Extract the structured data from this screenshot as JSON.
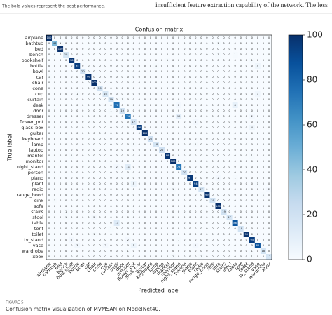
{
  "header_note": "The bold values represent the best performance.",
  "body_text": "insufficient feature extraction capability of the network. The less",
  "caption": {
    "label": "FIGURE 5",
    "text": "Confusion matrix visualization of MVMSAN on ModelNet40."
  },
  "chart_data": {
    "type": "heatmap",
    "title": "Confusion matrix",
    "x_label": "Predicted label",
    "y_label": "True label",
    "categories": [
      "airplane",
      "bathtub",
      "bed",
      "bench",
      "bookshelf",
      "bottle",
      "bowl",
      "car",
      "chair",
      "cone",
      "cup",
      "curtain",
      "desk",
      "door",
      "dresser",
      "flower_pot",
      "glass_box",
      "guitar",
      "keyboard",
      "lamp",
      "laptop",
      "mantel",
      "monitor",
      "night_stand",
      "person",
      "piano",
      "plant",
      "radio",
      "range_hood",
      "sink",
      "sofa",
      "stairs",
      "stool",
      "table",
      "tent",
      "toilet",
      "tv_stand",
      "vase",
      "wardrobe",
      "xbox"
    ],
    "colormap": [
      "#f7fbff",
      "#deebf7",
      "#c6dbef",
      "#9ecae1",
      "#6baed6",
      "#4292c6",
      "#2171b5",
      "#08519c",
      "#08306b"
    ],
    "clim": [
      0,
      100
    ],
    "cticks": [
      0,
      20,
      40,
      60,
      80,
      100
    ],
    "matrix": [
      [
        100,
        0,
        0,
        0,
        0,
        0,
        0,
        0,
        0,
        0,
        0,
        0,
        0,
        0,
        0,
        0,
        0,
        0,
        0,
        0,
        0,
        0,
        0,
        0,
        0,
        0,
        0,
        0,
        0,
        0,
        0,
        0,
        0,
        0,
        0,
        0,
        0,
        0,
        0,
        0
      ],
      [
        0,
        46,
        1,
        0,
        0,
        0,
        0,
        0,
        0,
        0,
        0,
        0,
        0,
        0,
        0,
        0,
        0,
        0,
        0,
        0,
        0,
        0,
        0,
        0,
        0,
        0,
        0,
        0,
        0,
        0,
        1,
        0,
        0,
        0,
        0,
        0,
        0,
        0,
        0,
        0
      ],
      [
        0,
        0,
        100,
        0,
        0,
        0,
        0,
        0,
        0,
        0,
        0,
        0,
        0,
        0,
        0,
        0,
        0,
        0,
        0,
        0,
        0,
        0,
        0,
        0,
        0,
        0,
        0,
        0,
        0,
        0,
        0,
        0,
        0,
        0,
        0,
        0,
        0,
        0,
        0,
        0
      ],
      [
        0,
        0,
        0,
        18,
        0,
        0,
        0,
        0,
        0,
        0,
        0,
        0,
        0,
        0,
        0,
        0,
        0,
        0,
        0,
        0,
        0,
        0,
        0,
        0,
        0,
        0,
        0,
        0,
        0,
        0,
        1,
        0,
        0,
        1,
        0,
        0,
        0,
        0,
        0,
        0
      ],
      [
        0,
        0,
        0,
        0,
        98,
        0,
        0,
        0,
        0,
        0,
        0,
        0,
        0,
        0,
        0,
        0,
        0,
        0,
        0,
        0,
        0,
        1,
        0,
        0,
        0,
        0,
        0,
        0,
        0,
        0,
        0,
        0,
        0,
        0,
        0,
        0,
        1,
        0,
        0,
        0
      ],
      [
        0,
        0,
        0,
        0,
        0,
        95,
        0,
        0,
        0,
        0,
        0,
        0,
        0,
        0,
        0,
        0,
        0,
        0,
        0,
        1,
        0,
        0,
        0,
        0,
        0,
        0,
        0,
        0,
        0,
        0,
        0,
        0,
        0,
        0,
        0,
        0,
        0,
        4,
        0,
        0
      ],
      [
        0,
        0,
        0,
        0,
        0,
        0,
        20,
        0,
        0,
        0,
        0,
        0,
        0,
        0,
        0,
        0,
        0,
        0,
        0,
        0,
        0,
        0,
        0,
        0,
        0,
        0,
        0,
        0,
        0,
        0,
        0,
        0,
        0,
        0,
        0,
        0,
        0,
        0,
        0,
        0
      ],
      [
        1,
        0,
        0,
        0,
        0,
        0,
        0,
        99,
        0,
        0,
        0,
        0,
        0,
        0,
        0,
        0,
        0,
        0,
        0,
        0,
        0,
        0,
        0,
        0,
        0,
        0,
        0,
        0,
        0,
        0,
        0,
        0,
        0,
        0,
        0,
        0,
        0,
        0,
        0,
        0
      ],
      [
        0,
        0,
        0,
        0,
        0,
        0,
        0,
        0,
        100,
        0,
        0,
        0,
        0,
        0,
        0,
        0,
        0,
        0,
        0,
        0,
        0,
        0,
        0,
        0,
        0,
        0,
        0,
        0,
        0,
        0,
        0,
        0,
        0,
        0,
        0,
        0,
        0,
        0,
        0,
        0
      ],
      [
        0,
        0,
        0,
        0,
        0,
        0,
        0,
        0,
        0,
        20,
        0,
        0,
        0,
        0,
        0,
        0,
        0,
        0,
        0,
        0,
        0,
        0,
        0,
        0,
        0,
        0,
        0,
        0,
        0,
        0,
        0,
        0,
        0,
        0,
        0,
        0,
        0,
        0,
        0,
        0
      ],
      [
        0,
        0,
        0,
        0,
        0,
        1,
        0,
        0,
        0,
        0,
        16,
        0,
        0,
        0,
        0,
        0,
        0,
        0,
        0,
        0,
        0,
        0,
        0,
        0,
        0,
        0,
        0,
        0,
        0,
        0,
        0,
        0,
        0,
        0,
        0,
        0,
        0,
        3,
        0,
        0
      ],
      [
        0,
        0,
        0,
        0,
        0,
        0,
        0,
        0,
        0,
        0,
        0,
        19,
        0,
        1,
        0,
        0,
        0,
        0,
        0,
        0,
        0,
        0,
        0,
        0,
        0,
        0,
        0,
        0,
        0,
        0,
        0,
        0,
        0,
        0,
        0,
        0,
        0,
        0,
        0,
        0
      ],
      [
        0,
        0,
        0,
        0,
        0,
        0,
        0,
        0,
        0,
        0,
        0,
        0,
        76,
        0,
        0,
        0,
        0,
        0,
        0,
        0,
        0,
        0,
        0,
        2,
        0,
        0,
        0,
        0,
        0,
        0,
        0,
        0,
        0,
        8,
        0,
        0,
        0,
        0,
        0,
        0
      ],
      [
        0,
        0,
        0,
        0,
        0,
        0,
        0,
        0,
        0,
        0,
        0,
        1,
        0,
        19,
        0,
        0,
        0,
        0,
        0,
        0,
        0,
        0,
        0,
        0,
        0,
        0,
        0,
        0,
        0,
        0,
        0,
        0,
        0,
        0,
        0,
        0,
        0,
        0,
        0,
        0
      ],
      [
        0,
        0,
        0,
        0,
        0,
        0,
        0,
        0,
        0,
        0,
        0,
        0,
        0,
        0,
        74,
        0,
        0,
        0,
        0,
        0,
        0,
        0,
        0,
        10,
        0,
        0,
        0,
        0,
        0,
        0,
        0,
        0,
        0,
        0,
        0,
        0,
        2,
        0,
        0,
        0
      ],
      [
        0,
        0,
        0,
        0,
        0,
        0,
        0,
        0,
        0,
        0,
        0,
        0,
        0,
        0,
        0,
        17,
        0,
        0,
        0,
        0,
        0,
        0,
        0,
        0,
        0,
        0,
        2,
        0,
        0,
        0,
        0,
        0,
        0,
        0,
        0,
        0,
        0,
        1,
        0,
        0
      ],
      [
        0,
        0,
        0,
        0,
        0,
        0,
        0,
        0,
        0,
        0,
        0,
        0,
        0,
        0,
        0,
        0,
        96,
        0,
        0,
        0,
        0,
        0,
        0,
        0,
        0,
        0,
        0,
        0,
        0,
        0,
        0,
        0,
        0,
        0,
        0,
        0,
        4,
        0,
        0,
        0
      ],
      [
        0,
        0,
        0,
        0,
        0,
        0,
        0,
        0,
        0,
        0,
        0,
        0,
        0,
        0,
        0,
        0,
        0,
        100,
        0,
        0,
        0,
        0,
        0,
        0,
        0,
        0,
        0,
        0,
        0,
        0,
        0,
        0,
        0,
        0,
        0,
        0,
        0,
        0,
        0,
        0
      ],
      [
        0,
        0,
        0,
        0,
        0,
        0,
        0,
        0,
        0,
        0,
        0,
        0,
        0,
        0,
        0,
        0,
        0,
        0,
        20,
        0,
        0,
        0,
        0,
        0,
        0,
        0,
        0,
        0,
        0,
        0,
        0,
        0,
        0,
        0,
        0,
        0,
        0,
        0,
        0,
        0
      ],
      [
        0,
        0,
        0,
        0,
        0,
        0,
        0,
        0,
        0,
        0,
        0,
        0,
        0,
        0,
        0,
        1,
        0,
        0,
        0,
        18,
        0,
        0,
        0,
        0,
        0,
        0,
        1,
        0,
        0,
        0,
        0,
        0,
        0,
        0,
        0,
        0,
        0,
        0,
        0,
        0
      ],
      [
        0,
        0,
        0,
        0,
        0,
        0,
        0,
        0,
        0,
        0,
        0,
        0,
        0,
        0,
        0,
        0,
        0,
        0,
        0,
        0,
        20,
        0,
        0,
        0,
        0,
        0,
        0,
        0,
        0,
        0,
        0,
        0,
        0,
        0,
        0,
        0,
        0,
        0,
        0,
        0
      ],
      [
        0,
        0,
        0,
        0,
        1,
        0,
        0,
        0,
        0,
        0,
        0,
        0,
        0,
        0,
        0,
        0,
        0,
        0,
        0,
        0,
        0,
        98,
        0,
        0,
        0,
        0,
        0,
        0,
        0,
        0,
        0,
        0,
        0,
        0,
        0,
        0,
        1,
        0,
        0,
        0
      ],
      [
        0,
        0,
        0,
        0,
        0,
        0,
        0,
        0,
        0,
        0,
        0,
        0,
        0,
        0,
        0,
        0,
        0,
        0,
        0,
        0,
        0,
        0,
        100,
        0,
        0,
        0,
        0,
        0,
        0,
        0,
        0,
        0,
        0,
        0,
        0,
        0,
        0,
        0,
        0,
        0
      ],
      [
        0,
        0,
        0,
        0,
        0,
        0,
        0,
        0,
        0,
        0,
        0,
        0,
        2,
        0,
        11,
        0,
        0,
        0,
        0,
        0,
        0,
        0,
        0,
        73,
        0,
        0,
        0,
        0,
        0,
        0,
        0,
        0,
        0,
        0,
        0,
        0,
        0,
        0,
        0,
        0
      ],
      [
        0,
        0,
        0,
        0,
        0,
        0,
        0,
        0,
        0,
        0,
        0,
        0,
        0,
        0,
        0,
        0,
        0,
        0,
        0,
        0,
        0,
        0,
        0,
        0,
        20,
        0,
        0,
        0,
        0,
        0,
        0,
        0,
        0,
        0,
        0,
        0,
        0,
        0,
        0,
        0
      ],
      [
        0,
        0,
        0,
        0,
        0,
        0,
        0,
        0,
        0,
        0,
        0,
        0,
        0,
        0,
        0,
        0,
        0,
        0,
        0,
        0,
        0,
        0,
        0,
        0,
        0,
        97,
        0,
        0,
        0,
        0,
        2,
        0,
        0,
        1,
        0,
        0,
        0,
        0,
        0,
        0
      ],
      [
        0,
        0,
        0,
        0,
        0,
        0,
        0,
        0,
        0,
        0,
        0,
        0,
        0,
        0,
        0,
        5,
        0,
        0,
        0,
        0,
        0,
        0,
        0,
        0,
        0,
        0,
        94,
        0,
        0,
        0,
        0,
        0,
        0,
        0,
        0,
        0,
        0,
        1,
        0,
        0
      ],
      [
        0,
        0,
        0,
        0,
        0,
        0,
        0,
        0,
        0,
        0,
        0,
        0,
        0,
        0,
        0,
        0,
        0,
        0,
        0,
        0,
        0,
        0,
        1,
        0,
        0,
        0,
        0,
        17,
        0,
        0,
        0,
        0,
        0,
        0,
        0,
        0,
        0,
        0,
        0,
        2
      ],
      [
        0,
        0,
        0,
        0,
        0,
        0,
        0,
        0,
        0,
        0,
        0,
        0,
        0,
        0,
        0,
        0,
        0,
        0,
        0,
        0,
        0,
        0,
        0,
        0,
        0,
        0,
        0,
        0,
        99,
        0,
        0,
        0,
        0,
        0,
        0,
        0,
        0,
        0,
        1,
        0
      ],
      [
        0,
        1,
        0,
        0,
        0,
        0,
        0,
        0,
        0,
        0,
        0,
        0,
        0,
        0,
        0,
        0,
        0,
        0,
        0,
        0,
        0,
        0,
        0,
        0,
        0,
        0,
        0,
        0,
        0,
        19,
        0,
        0,
        0,
        0,
        0,
        0,
        0,
        0,
        0,
        0
      ],
      [
        0,
        0,
        0,
        0,
        0,
        0,
        0,
        0,
        0,
        0,
        0,
        0,
        0,
        0,
        0,
        0,
        0,
        0,
        0,
        0,
        0,
        0,
        0,
        0,
        0,
        0,
        0,
        0,
        0,
        0,
        100,
        0,
        0,
        0,
        0,
        0,
        0,
        0,
        0,
        0
      ],
      [
        0,
        0,
        0,
        1,
        0,
        0,
        0,
        0,
        0,
        0,
        0,
        0,
        0,
        0,
        0,
        0,
        0,
        0,
        0,
        0,
        0,
        0,
        0,
        0,
        0,
        0,
        0,
        0,
        0,
        0,
        0,
        19,
        0,
        0,
        0,
        0,
        0,
        0,
        0,
        0
      ],
      [
        0,
        0,
        0,
        1,
        0,
        0,
        0,
        0,
        2,
        0,
        0,
        0,
        0,
        0,
        0,
        0,
        0,
        0,
        0,
        0,
        0,
        0,
        0,
        0,
        0,
        0,
        0,
        0,
        0,
        0,
        0,
        0,
        17,
        0,
        0,
        0,
        0,
        0,
        0,
        0
      ],
      [
        0,
        0,
        0,
        0,
        0,
        0,
        0,
        0,
        0,
        0,
        0,
        0,
        13,
        0,
        0,
        0,
        0,
        0,
        0,
        0,
        0,
        0,
        0,
        0,
        0,
        0,
        0,
        0,
        0,
        0,
        0,
        0,
        1,
        86,
        0,
        0,
        0,
        0,
        0,
        0
      ],
      [
        0,
        0,
        0,
        0,
        0,
        0,
        0,
        0,
        0,
        0,
        0,
        1,
        0,
        0,
        0,
        0,
        0,
        0,
        0,
        0,
        0,
        0,
        0,
        0,
        0,
        0,
        0,
        0,
        0,
        0,
        0,
        0,
        0,
        0,
        19,
        0,
        0,
        0,
        0,
        0
      ],
      [
        0,
        0,
        0,
        0,
        0,
        0,
        0,
        0,
        1,
        0,
        0,
        0,
        0,
        0,
        0,
        0,
        0,
        0,
        0,
        0,
        0,
        0,
        0,
        0,
        0,
        0,
        0,
        0,
        0,
        0,
        0,
        0,
        0,
        0,
        0,
        99,
        0,
        0,
        0,
        0
      ],
      [
        0,
        0,
        0,
        0,
        2,
        0,
        0,
        0,
        0,
        0,
        0,
        0,
        0,
        0,
        2,
        0,
        0,
        0,
        0,
        0,
        0,
        0,
        0,
        1,
        0,
        0,
        0,
        0,
        0,
        0,
        0,
        0,
        0,
        0,
        0,
        0,
        95,
        0,
        0,
        0
      ],
      [
        0,
        0,
        0,
        0,
        0,
        3,
        0,
        0,
        0,
        0,
        2,
        0,
        0,
        0,
        0,
        5,
        0,
        0,
        0,
        0,
        0,
        0,
        0,
        0,
        0,
        0,
        2,
        0,
        0,
        0,
        0,
        0,
        0,
        0,
        0,
        0,
        0,
        88,
        0,
        0
      ],
      [
        0,
        0,
        0,
        0,
        0,
        0,
        0,
        0,
        0,
        0,
        0,
        0,
        0,
        0,
        1,
        0,
        0,
        0,
        0,
        0,
        0,
        0,
        0,
        0,
        0,
        0,
        0,
        0,
        0,
        0,
        0,
        0,
        0,
        0,
        0,
        0,
        1,
        0,
        18,
        0
      ],
      [
        0,
        0,
        0,
        0,
        0,
        0,
        0,
        0,
        0,
        0,
        0,
        0,
        0,
        0,
        0,
        0,
        0,
        0,
        0,
        0,
        0,
        0,
        1,
        0,
        0,
        0,
        0,
        1,
        0,
        0,
        0,
        0,
        0,
        0,
        0,
        0,
        1,
        0,
        0,
        17
      ]
    ]
  }
}
